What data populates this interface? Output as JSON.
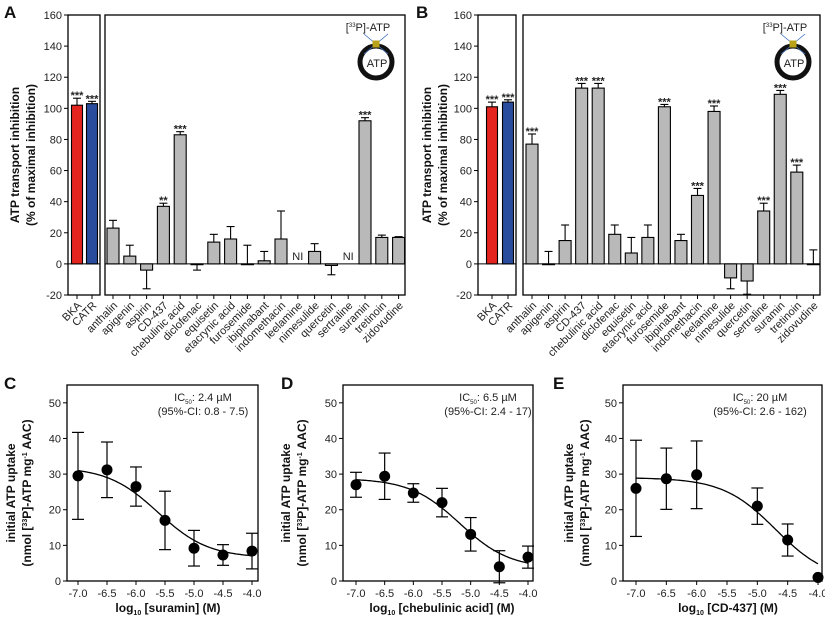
{
  "chart_data": [
    {
      "panel": "A",
      "type": "bar",
      "ylabel_line1": "ATP transport inhibition",
      "ylabel_line2": "(% of maximal inhibition)",
      "ylim": [
        -20,
        160
      ],
      "yticks": [
        "160",
        "140",
        "120",
        "100",
        "80",
        "60",
        "40",
        "20",
        "0",
        "-20"
      ],
      "inset": {
        "pre": "[",
        "sup": "33",
        "post": "P]-ATP",
        "inner": "ATP"
      },
      "controls": {
        "categories": [
          "BKA",
          "CATR"
        ],
        "values": [
          102,
          103
        ],
        "errors": [
          4.5,
          1.5
        ],
        "colors": [
          "#e3241f",
          "#2a4c9c"
        ],
        "marks": [
          "***",
          "***"
        ]
      },
      "categories": [
        "anthalin",
        "apigenin",
        "aspirin",
        "CD-437",
        "chebulinic acid",
        "diclofenac",
        "equisetin",
        "etacrynic acid",
        "furosemide",
        "ibipinabant",
        "indomethacin",
        "leelamine",
        "nimesulide",
        "quercetin",
        "sertraline",
        "suramin",
        "tretinoin",
        "zidovudine"
      ],
      "values": [
        23,
        5,
        -4,
        37,
        83,
        -0.5,
        14,
        16,
        0,
        2,
        16,
        null,
        8,
        -1,
        null,
        92,
        17,
        17
      ],
      "errors": [
        5,
        7,
        12,
        2,
        2,
        3.5,
        5,
        8,
        12,
        6,
        18,
        0,
        5,
        6,
        0,
        2,
        1.5,
        0.5
      ],
      "marks": [
        "",
        "",
        "",
        "**",
        "***",
        "",
        "",
        "",
        "",
        "",
        "",
        "NI",
        "",
        "",
        "NI",
        "***",
        "",
        ""
      ],
      "bar_color": "#b9b9b9"
    },
    {
      "panel": "B",
      "type": "bar",
      "ylabel_line1": "ATP transport inhibition",
      "ylabel_line2": "(% of maximal inhibition)",
      "ylim": [
        -20,
        160
      ],
      "yticks": [
        "160",
        "140",
        "120",
        "100",
        "80",
        "60",
        "40",
        "20",
        "0",
        "-20"
      ],
      "inset": {
        "pre": "[",
        "sup": "33",
        "post": "P]-ATP",
        "inner": "ATP"
      },
      "controls": {
        "categories": [
          "BKA",
          "CATR"
        ],
        "values": [
          101,
          104
        ],
        "errors": [
          3,
          1.5
        ],
        "colors": [
          "#e3241f",
          "#2a4c9c"
        ],
        "marks": [
          "***",
          "***"
        ]
      },
      "categories": [
        "anthalin",
        "apigenin",
        "aspirin",
        "CD-437",
        "chebulinic acid",
        "diclofenac",
        "equisetin",
        "etacrynic acid",
        "furosemide",
        "ibipinabant",
        "indomethacin",
        "leelamine",
        "nimesulide",
        "quercetin",
        "sertraline",
        "suramin",
        "tretinoin",
        "zidovudine"
      ],
      "values": [
        77,
        0,
        15,
        113,
        113,
        19,
        7,
        17,
        101,
        15,
        44,
        98,
        -9,
        -11,
        34,
        109,
        59,
        0
      ],
      "errors": [
        6.5,
        8,
        10,
        3,
        3,
        6,
        10,
        8,
        1.5,
        4,
        4.5,
        3.5,
        7,
        8.5,
        5,
        2.5,
        4.5,
        9
      ],
      "marks": [
        "***",
        "",
        "",
        "***",
        "***",
        "",
        "",
        "",
        "***",
        "",
        "***",
        "***",
        "",
        "",
        "***",
        "***",
        "***",
        ""
      ],
      "bar_color": "#b9b9b9"
    },
    {
      "panel": "C",
      "type": "scatter",
      "ic50_pre": "IC",
      "ic50_sub": "50",
      "ic50_post": ": 2.4 µM",
      "ci": "(95%-CI: 0.8 - 7.5)",
      "ylabel_line1": "initial ATP uptake",
      "ylabel_line2": {
        "a": "(nmol [",
        "sup1": "33",
        "b": "P]-ATP mg",
        "sup2": "-1",
        "c": " AAC)"
      },
      "xlabel": {
        "pre": "log",
        "sub": "10",
        "post": " [suramin] (M)"
      },
      "xlim": [
        -7.2,
        -3.8
      ],
      "ylim": [
        0,
        55
      ],
      "xticks": [
        "-7.0",
        "-6.5",
        "-6.0",
        "-5.5",
        "-5.0",
        "-4.5",
        "-4.0"
      ],
      "yticks": [
        "0",
        "10",
        "20",
        "30",
        "40",
        "50"
      ],
      "x": [
        -7.0,
        -6.5,
        -6.0,
        -5.5,
        -5.0,
        -4.5,
        -4.0
      ],
      "y": [
        29.5,
        31.2,
        26.5,
        17,
        9.2,
        7.3,
        8.4
      ],
      "err": [
        12.2,
        7.8,
        5.5,
        8.2,
        5,
        2.9,
        5
      ],
      "fit": {
        "top": 32,
        "bottom": 6.5,
        "logIC50": -5.62,
        "hill": 1,
        "from": -7.0,
        "to": -4.0
      }
    },
    {
      "panel": "D",
      "type": "scatter",
      "ic50_pre": "IC",
      "ic50_sub": "50",
      "ic50_post": ": 6.5 µM",
      "ci": "(95%-CI: 2.4 - 17)",
      "ylabel_line1": "initial ATP uptake",
      "ylabel_line2": {
        "a": "(nmol [",
        "sup1": "33",
        "b": "P]-ATP mg",
        "sup2": "-1",
        "c": " AAC)"
      },
      "xlabel": {
        "pre": "log",
        "sub": "10",
        "post": " [chebulinic acid] (M)"
      },
      "xlim": [
        -7.2,
        -3.8
      ],
      "ylim": [
        0,
        55
      ],
      "xticks": [
        "-7.0",
        "-6.5",
        "-6.0",
        "-5.5",
        "-5.0",
        "-4.5",
        "-4.0"
      ],
      "yticks": [
        "0",
        "10",
        "20",
        "30",
        "40",
        "50"
      ],
      "x": [
        -7.0,
        -6.5,
        -6.0,
        -5.5,
        -5.0,
        -4.5,
        -4.0
      ],
      "y": [
        27,
        29.4,
        24.7,
        22,
        13.1,
        4,
        6.7
      ],
      "err": [
        3.5,
        6.5,
        2.6,
        4,
        4.7,
        4.5,
        3.1
      ],
      "fit": {
        "top": 28.8,
        "bottom": 3.5,
        "logIC50": -5.19,
        "hill": 1,
        "from": -7.0,
        "to": -4.0
      }
    },
    {
      "panel": "E",
      "type": "scatter",
      "ic50_pre": "IC",
      "ic50_sub": "50",
      "ic50_post": ": 20 µM",
      "ci": "(95%-CI: 2.6 - 162)",
      "ylabel_line1": "initial ATP uptake",
      "ylabel_line2": {
        "a": "(nmol [",
        "sup1": "33",
        "b": "P]-ATP mg",
        "sup2": "-1",
        "c": " AAC)"
      },
      "xlabel": {
        "pre": "log",
        "sub": "10",
        "post": " [CD-437] (M)"
      },
      "xlim": [
        -7.2,
        -3.8
      ],
      "ylim": [
        0,
        55
      ],
      "xticks": [
        "-7.0",
        "-6.5",
        "-6.0",
        "-5.5",
        "-5.0",
        "-4.5",
        "-4.0"
      ],
      "yticks": [
        "0",
        "10",
        "20",
        "30",
        "40",
        "50"
      ],
      "x": [
        -7.0,
        -6.5,
        -6.0,
        -5.0,
        -4.5,
        -4.0
      ],
      "y": [
        26,
        28.7,
        29.8,
        21,
        11.5,
        1
      ],
      "err": [
        13.5,
        8.6,
        9.5,
        5.1,
        4.5,
        0
      ],
      "fit": {
        "top": 29,
        "bottom": 0,
        "logIC50": -4.7,
        "hill": 1,
        "from": -7.0,
        "to": -4.0
      }
    }
  ]
}
